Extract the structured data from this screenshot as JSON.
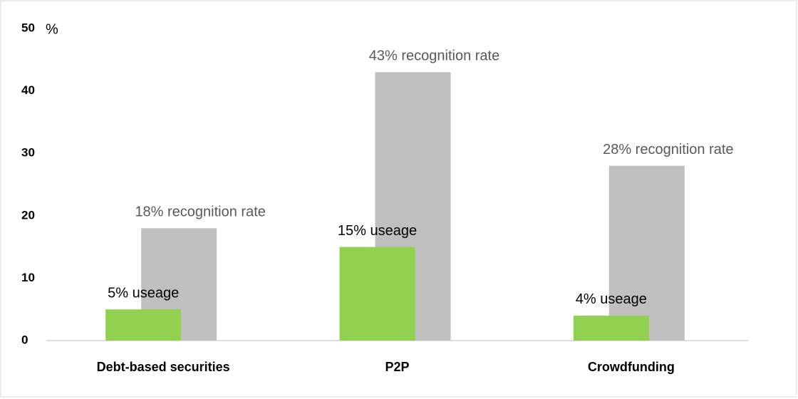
{
  "chart_data": {
    "type": "bar",
    "categories": [
      "Debt-based securities",
      "P2P",
      "Crowdfunding"
    ],
    "series": [
      {
        "color": "#bfbfbf",
        "values": [
          18,
          43,
          28
        ],
        "value_labels": [
          "18% recognition rate",
          "43% recognition rate",
          "28% recognition rate"
        ]
      },
      {
        "color": "#92d050",
        "values": [
          5,
          15,
          4
        ],
        "value_labels": [
          "5% useage",
          "15% useage",
          "4% useage"
        ]
      }
    ],
    "ylabel": "%",
    "ylim": [
      0,
      50
    ],
    "yticks": [
      0,
      10,
      20,
      30,
      40,
      50
    ],
    "grid": false
  }
}
